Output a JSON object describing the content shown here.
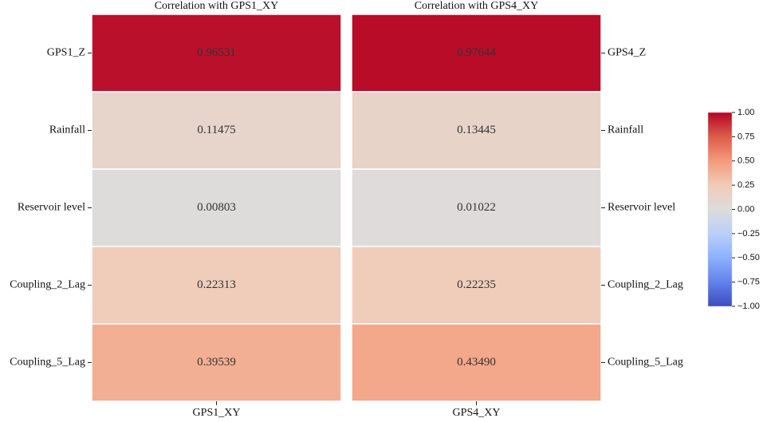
{
  "chart_data": [
    {
      "type": "heatmap",
      "title": "Correlation with GPS1_XY",
      "categories": [
        "GPS1_Z",
        "Rainfall",
        "Reservoir level",
        "Coupling_2_Lag",
        "Coupling_5_Lag"
      ],
      "columns": [
        "GPS1_XY"
      ],
      "values": [
        0.96531,
        0.11475,
        0.00803,
        0.22313,
        0.39539
      ],
      "value_labels": [
        "0.96531",
        "0.11475",
        "0.00803",
        "0.22313",
        "0.39539"
      ],
      "colormap": "coolwarm",
      "zlim": [
        -1,
        1
      ],
      "label_side": "left"
    },
    {
      "type": "heatmap",
      "title": "Correlation with GPS4_XY",
      "categories": [
        "GPS4_Z",
        "Rainfall",
        "Reservoir level",
        "Coupling_2_Lag",
        "Coupling_5_Lag"
      ],
      "columns": [
        "GPS4_XY"
      ],
      "values": [
        0.97644,
        0.13445,
        0.01022,
        0.22235,
        0.4349
      ],
      "value_labels": [
        "0.97644",
        "0.13445",
        "0.01022",
        "0.22235",
        "0.43490"
      ],
      "colormap": "coolwarm",
      "zlim": [
        -1,
        1
      ],
      "label_side": "right",
      "colorbar": true,
      "zticks": [
        {
          "value": 1,
          "label": "1.00"
        },
        {
          "value": 0.75,
          "label": "0.75"
        },
        {
          "value": 0.5,
          "label": "0.50"
        },
        {
          "value": 0.25,
          "label": "0.25"
        },
        {
          "value": 0,
          "label": "0.00"
        },
        {
          "value": -0.25,
          "label": "−0.25"
        },
        {
          "value": -0.5,
          "label": "−0.50"
        },
        {
          "value": -0.75,
          "label": "−0.75"
        },
        {
          "value": -1,
          "label": "−1.00"
        }
      ]
    }
  ]
}
